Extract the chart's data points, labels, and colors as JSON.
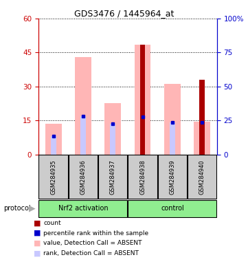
{
  "title": "GDS3476 / 1445964_at",
  "samples": [
    "GSM284935",
    "GSM284936",
    "GSM284937",
    "GSM284938",
    "GSM284939",
    "GSM284940"
  ],
  "pink_bar_values": [
    13.5,
    43.0,
    22.5,
    48.5,
    31.0,
    14.5
  ],
  "lightblue_bar_values": [
    8.0,
    17.0,
    13.5,
    16.5,
    14.0,
    14.0
  ],
  "red_bar_values": [
    0,
    0,
    0,
    48.5,
    0,
    33.0
  ],
  "blue_dot_values": [
    8.0,
    17.0,
    13.5,
    16.5,
    14.0,
    14.0
  ],
  "left_ylim": [
    0,
    60
  ],
  "right_ylim": [
    0,
    100
  ],
  "left_yticks": [
    0,
    15,
    30,
    45,
    60
  ],
  "right_yticks": [
    0,
    25,
    50,
    75,
    100
  ],
  "right_yticklabels": [
    "0",
    "25",
    "50",
    "75",
    "100%"
  ],
  "left_tick_color": "#cc0000",
  "right_tick_color": "#0000cc",
  "pink_color": "#ffb6b6",
  "lightblue_color": "#c8c8ff",
  "red_color": "#aa0000",
  "blue_color": "#0000cc",
  "group1_label": "Nrf2 activation",
  "group2_label": "control",
  "group_color": "#90EE90",
  "protocol_label": "protocol",
  "legend_colors": [
    "#aa0000",
    "#0000cc",
    "#ffb6b6",
    "#c8c8ff"
  ],
  "legend_labels": [
    "count",
    "percentile rank within the sample",
    "value, Detection Call = ABSENT",
    "rank, Detection Call = ABSENT"
  ]
}
